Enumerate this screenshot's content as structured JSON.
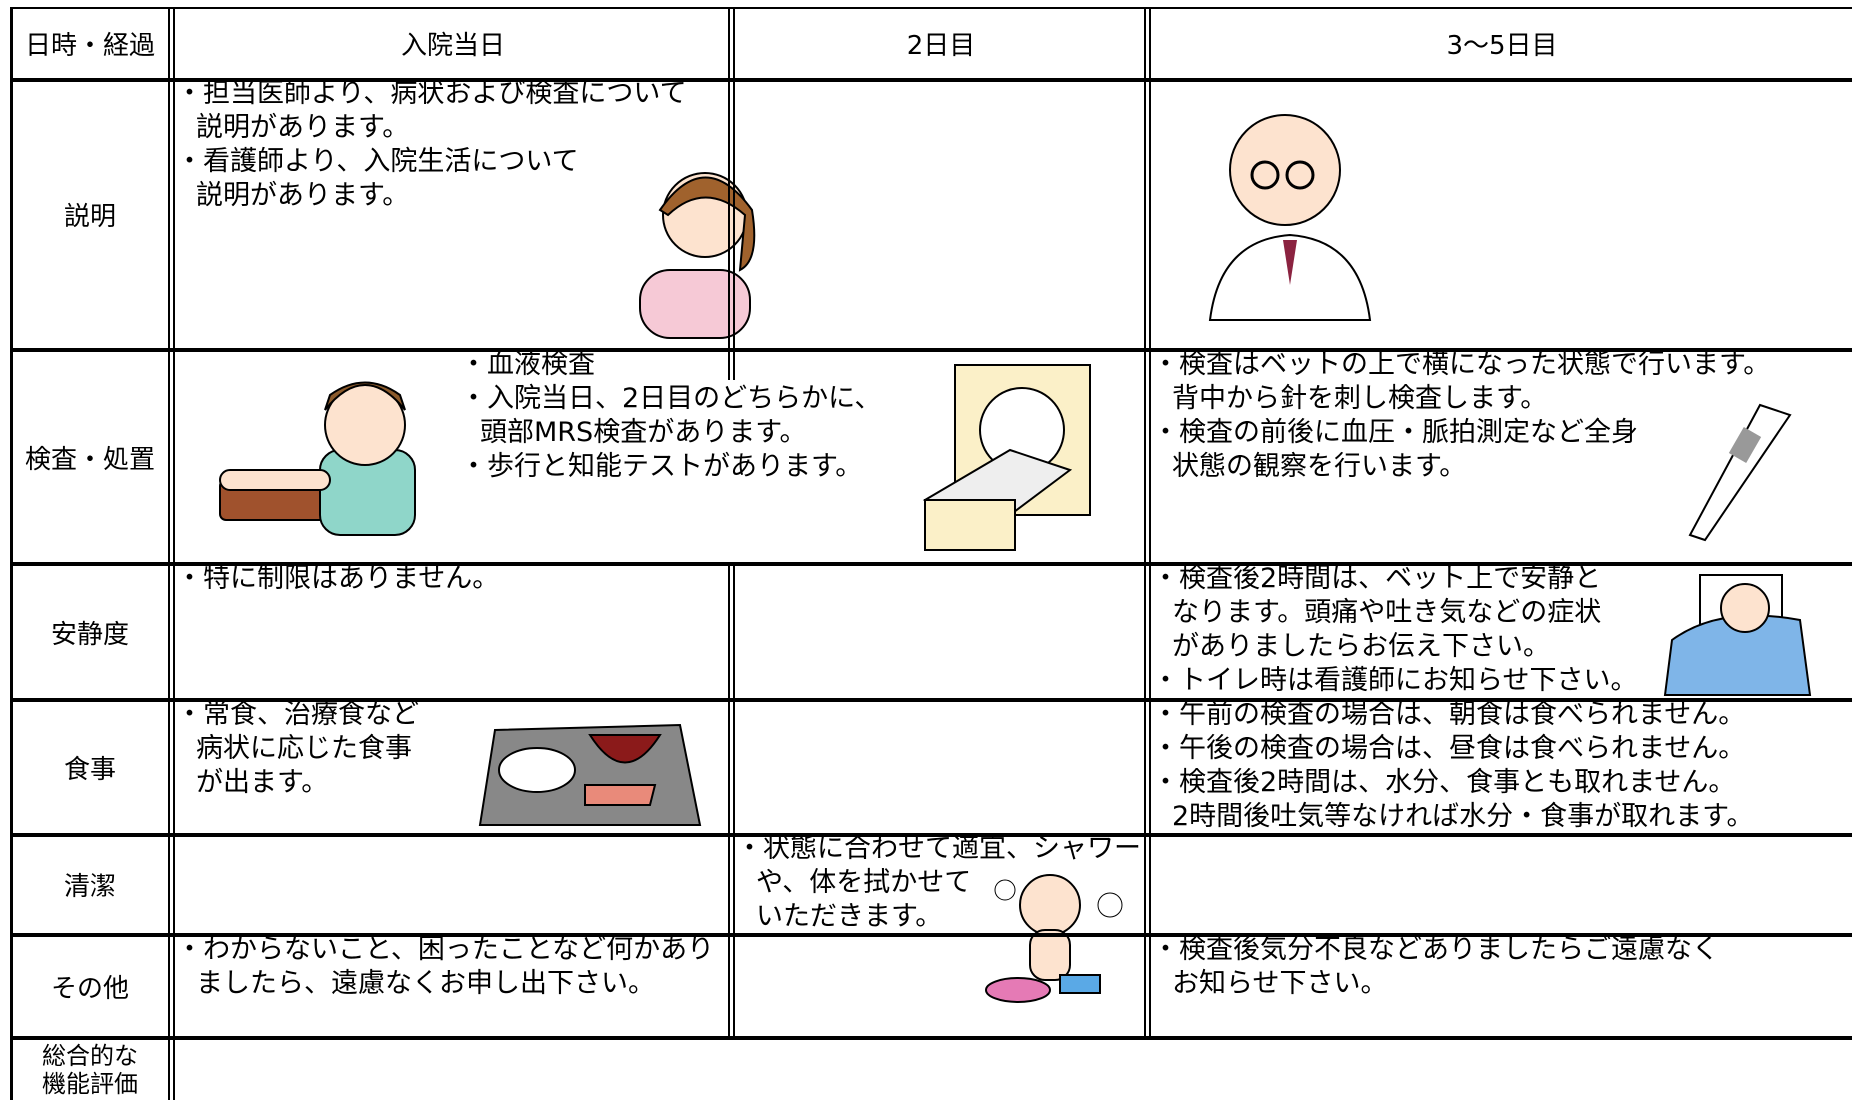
{
  "table": {
    "header": [
      "日時・経過",
      "入院当日",
      "2日目",
      "3〜5日目"
    ],
    "rows": [
      {
        "label": "説明",
        "cells": [
          [
            "・担当医師より、病状および検査について",
            "説明があります。",
            "・看護師より、入院生活について",
            "説明があります。"
          ],
          [],
          []
        ]
      },
      {
        "label": "検査・処置",
        "cells": [
          [
            "・血液検査",
            "・入院当日、2日目のどちらかに、",
            "頭部MRS検査があります。",
            "・歩行と知能テストがあります。"
          ],
          [],
          [
            "・検査はベットの上で横になった状態で行います。",
            "背中から針を刺し検査します。",
            "・検査の前後に血圧・脈拍測定など全身",
            "状態の観察を行います。"
          ]
        ]
      },
      {
        "label": "安静度",
        "cells": [
          [
            "・特に制限はありません。"
          ],
          [],
          [
            "・検査後2時間は、ベット上で安静と",
            "なります。頭痛や吐き気などの症状",
            "がありましたらお伝え下さい。",
            "・トイレ時は看護師にお知らせ下さい。"
          ]
        ]
      },
      {
        "label": "食事",
        "cells": [
          [
            "・常食、治療食など",
            "病状に応じた食事",
            "が出ます。"
          ],
          [],
          [
            "・午前の検査の場合は、朝食は食べられません。",
            "・午後の検査の場合は、昼食は食べられません。",
            "・検査後2時間は、水分、食事とも取れません。",
            "2時間後吐気等なければ水分・食事が取れます。"
          ]
        ]
      },
      {
        "label": "清潔",
        "cells": [
          [],
          [
            "・状態に合わせて適宜、シャワー",
            "や、体を拭かせて",
            "いただきます。"
          ],
          []
        ]
      },
      {
        "label": "その他",
        "cells": [
          [
            "・わからないこと、困ったことなど何かあり",
            "ましたら、遠慮なくお申し出下さい。"
          ],
          [],
          [
            "・検査後気分不良などありましたらご遠慮なく",
            "お知らせ下さい。"
          ]
        ]
      },
      {
        "label": "総合的な機能評価",
        "cells": [
          [],
          [],
          []
        ]
      }
    ]
  }
}
